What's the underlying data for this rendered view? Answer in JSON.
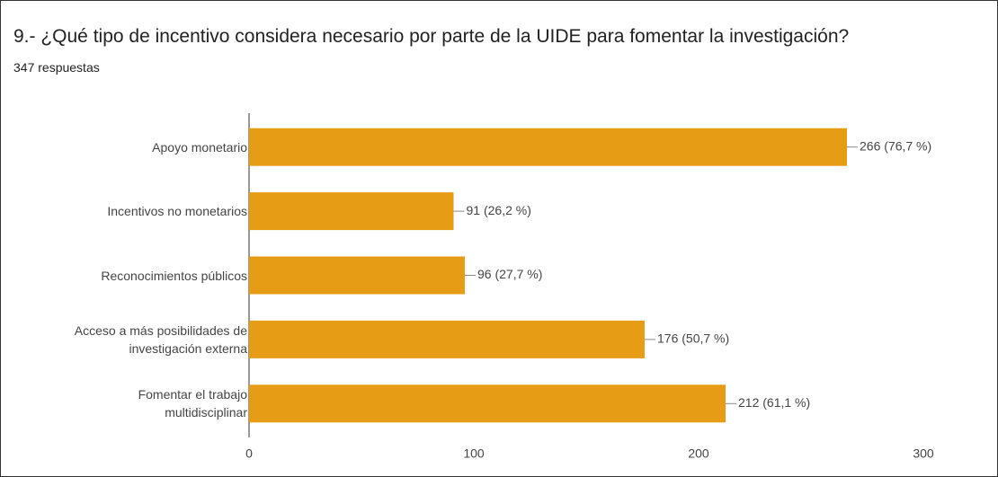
{
  "chart_data": {
    "type": "bar",
    "orientation": "horizontal",
    "title": "9.- ¿Qué tipo de incentivo considera necesario por parte de la UIDE para fomentar la investigación?",
    "subtitle": "347 respuestas",
    "categories": [
      "Apoyo monetario",
      "Incentivos no monetarios",
      "Reconocimientos públicos",
      "Acceso a más posibilidades de\ninvestigación externa",
      "Fomentar el trabajo\nmultidisciplinar"
    ],
    "values": [
      266,
      91,
      96,
      176,
      212
    ],
    "value_labels": [
      "266 (76,7 %)",
      "91 (26,2 %)",
      "96 (27,7 %)",
      "176 (50,7 %)",
      "212 (61,1 %)"
    ],
    "color": "#e69d15",
    "xlim": [
      0,
      300
    ],
    "xticks": [
      0,
      100,
      200,
      300
    ],
    "grid": false
  }
}
